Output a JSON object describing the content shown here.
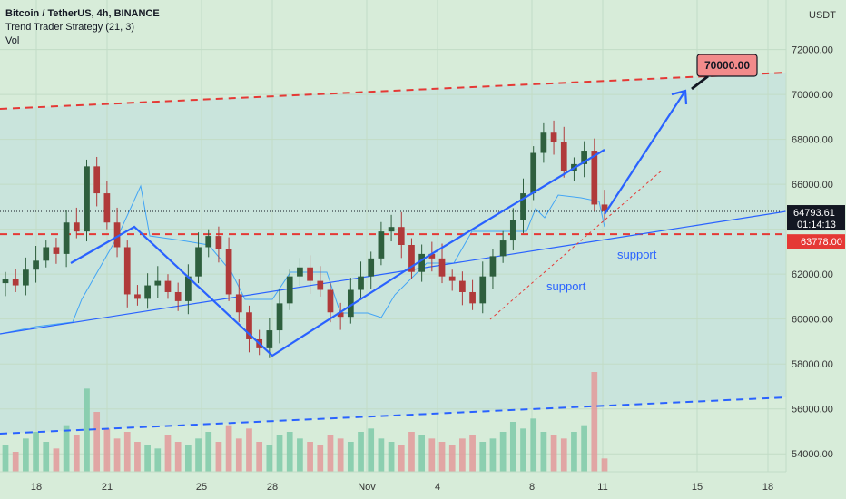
{
  "legend": {
    "symbol": "Bitcoin / TetherUS, 4h, BINANCE",
    "strategy": "Trend Trader Strategy (21, 3)",
    "volume": "Vol"
  },
  "price_axis": {
    "currency": "USDT",
    "ticks": [
      "72000.00",
      "70000.00",
      "68000.00",
      "66000.00",
      "62000.00",
      "60000.00",
      "58000.00",
      "56000.00",
      "54000.00"
    ],
    "current_price": "64793.61",
    "countdown": "01:14:13",
    "level_tag": "63778.00"
  },
  "time_axis": {
    "ticks": [
      "18",
      "21",
      "25",
      "28",
      "Nov",
      "4",
      "8",
      "11",
      "15",
      "18"
    ]
  },
  "annotations": {
    "target": "70000.00",
    "support_left": "support",
    "support_right": "support"
  },
  "colors": {
    "background": "#d7ecd9",
    "channel_fill": "#c9e4dc",
    "up_candle": "#2e5f3e",
    "down_candle": "#b03a3a",
    "vol_up": "#7fcaa8",
    "vol_down": "#e39a9a",
    "red_dashed": "#e53935",
    "blue_dashed": "#2962ff",
    "blue_line": "#2962ff",
    "trend_band": "#42a5f5",
    "target_box": "#f28b8b",
    "current_tag": "#131722",
    "level_tag": "#e53935"
  },
  "chart_data": {
    "type": "candlestick",
    "title": "Bitcoin / TetherUS, 4h, BINANCE",
    "ylim": [
      53200,
      73400
    ],
    "unit": "USDT",
    "x_tick_labels": [
      "18",
      "21",
      "25",
      "28",
      "Nov",
      "4",
      "8",
      "11",
      "15",
      "18"
    ],
    "current_price": 64793.61,
    "horizontal_level": 63778,
    "target_price": 70000,
    "candles_approx_close": [
      61800,
      61500,
      62200,
      62600,
      63200,
      62900,
      64300,
      63900,
      66800,
      65600,
      64300,
      63200,
      61100,
      60900,
      61500,
      61700,
      61200,
      60800,
      61900,
      63200,
      63700,
      63100,
      61100,
      60300,
      59100,
      58700,
      59500,
      60700,
      61900,
      62300,
      61700,
      61300,
      60300,
      60100,
      61300,
      61900,
      62700,
      63900,
      64100,
      63300,
      62100,
      62900,
      62700,
      61900,
      61700,
      61200,
      60700,
      61900,
      62800,
      63500,
      64400,
      65600,
      67400,
      68300,
      67900,
      66600,
      66900,
      67500,
      65100,
      64800
    ],
    "volume_approx": [
      8,
      6,
      10,
      12,
      9,
      7,
      14,
      11,
      25,
      18,
      13,
      10,
      12,
      9,
      8,
      7,
      11,
      9,
      8,
      10,
      12,
      9,
      14,
      10,
      13,
      9,
      8,
      11,
      12,
      10,
      9,
      8,
      11,
      10,
      9,
      12,
      13,
      10,
      9,
      8,
      12,
      11,
      10,
      9,
      8,
      10,
      11,
      9,
      10,
      12,
      15,
      13,
      16,
      12,
      11,
      10,
      12,
      14,
      30,
      4
    ]
  }
}
